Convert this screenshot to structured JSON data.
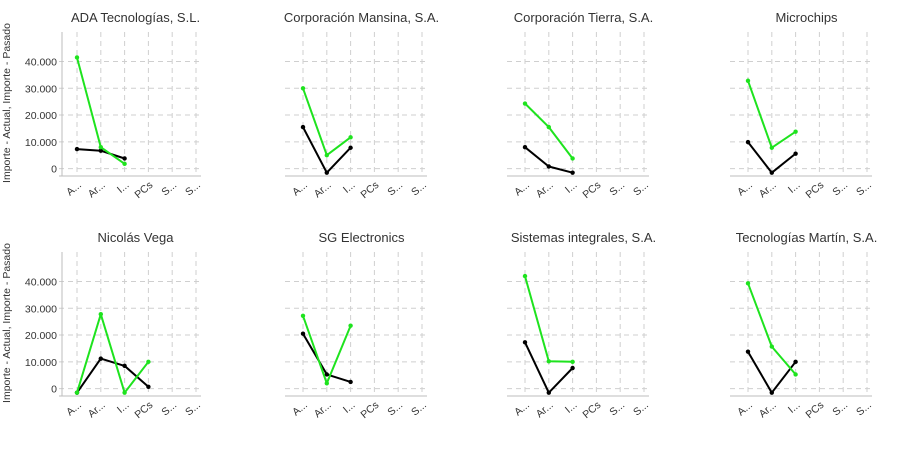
{
  "chart_data": {
    "type": "line",
    "ylabel": "Importe - Actual, Importe - Pasado",
    "yticks": [
      0,
      10000,
      20000,
      30000,
      40000
    ],
    "ytick_labels": [
      "0",
      "10.000",
      "20.000",
      "30.000",
      "40.000"
    ],
    "ylim": [
      -2000,
      51000
    ],
    "grid": true,
    "x_tick_labels": [
      "A...",
      "Ar...",
      "I...",
      "PCs",
      "S...",
      "S..."
    ],
    "colors": {
      "Importe - Actual": "#000000",
      "Importe - Pasado": "#1ee31e"
    },
    "panels": [
      {
        "title": "ADA Tecnologías, S.L.",
        "series": [
          {
            "name": "Importe - Actual",
            "x": [
              0,
              1,
              2
            ],
            "values": [
              7300,
              6700,
              3800
            ]
          },
          {
            "name": "Importe - Pasado",
            "x": [
              0,
              1,
              2
            ],
            "values": [
              41500,
              8000,
              1800
            ]
          }
        ]
      },
      {
        "title": "Corporación Mansina, S.A.",
        "series": [
          {
            "name": "Importe - Actual",
            "x": [
              0,
              1,
              2
            ],
            "values": [
              15500,
              -1500,
              7800
            ]
          },
          {
            "name": "Importe - Pasado",
            "x": [
              0,
              1,
              2
            ],
            "values": [
              30000,
              5000,
              11700
            ]
          }
        ]
      },
      {
        "title": "Corporación Tierra, S.A.",
        "series": [
          {
            "name": "Importe - Actual",
            "x": [
              0,
              1,
              2
            ],
            "values": [
              8000,
              800,
              -1500
            ]
          },
          {
            "name": "Importe - Pasado",
            "x": [
              0,
              1,
              2
            ],
            "values": [
              24300,
              15500,
              3800
            ]
          }
        ]
      },
      {
        "title": "Microchips",
        "series": [
          {
            "name": "Importe - Actual",
            "x": [
              0,
              1,
              2
            ],
            "values": [
              9900,
              -1500,
              5600
            ]
          },
          {
            "name": "Importe - Pasado",
            "x": [
              0,
              1,
              2
            ],
            "values": [
              32800,
              7800,
              13800
            ]
          }
        ]
      },
      {
        "title": "Nicolás Vega",
        "series": [
          {
            "name": "Importe - Actual",
            "x": [
              0,
              1,
              2,
              3
            ],
            "values": [
              -1500,
              11200,
              8500,
              700
            ]
          },
          {
            "name": "Importe - Pasado",
            "x": [
              0,
              1,
              2,
              3
            ],
            "values": [
              -1500,
              27800,
              -1500,
              10000
            ]
          }
        ]
      },
      {
        "title": "SG Electronics",
        "series": [
          {
            "name": "Importe - Actual",
            "x": [
              0,
              1,
              2
            ],
            "values": [
              20500,
              5300,
              2500
            ]
          },
          {
            "name": "Importe - Pasado",
            "x": [
              0,
              1,
              2
            ],
            "values": [
              27200,
              2000,
              23500
            ]
          }
        ]
      },
      {
        "title": "Sistemas integrales, S.A.",
        "series": [
          {
            "name": "Importe - Actual",
            "x": [
              0,
              1,
              2
            ],
            "values": [
              17300,
              -1500,
              7700
            ]
          },
          {
            "name": "Importe - Pasado",
            "x": [
              0,
              1,
              2
            ],
            "values": [
              42000,
              10200,
              10000
            ]
          }
        ]
      },
      {
        "title": "Tecnologías Martín, S.A.",
        "series": [
          {
            "name": "Importe - Actual",
            "x": [
              0,
              1,
              2
            ],
            "values": [
              13800,
              -1500,
              10000
            ]
          },
          {
            "name": "Importe - Pasado",
            "x": [
              0,
              1,
              2
            ],
            "values": [
              39300,
              15700,
              5300
            ]
          }
        ]
      }
    ]
  }
}
